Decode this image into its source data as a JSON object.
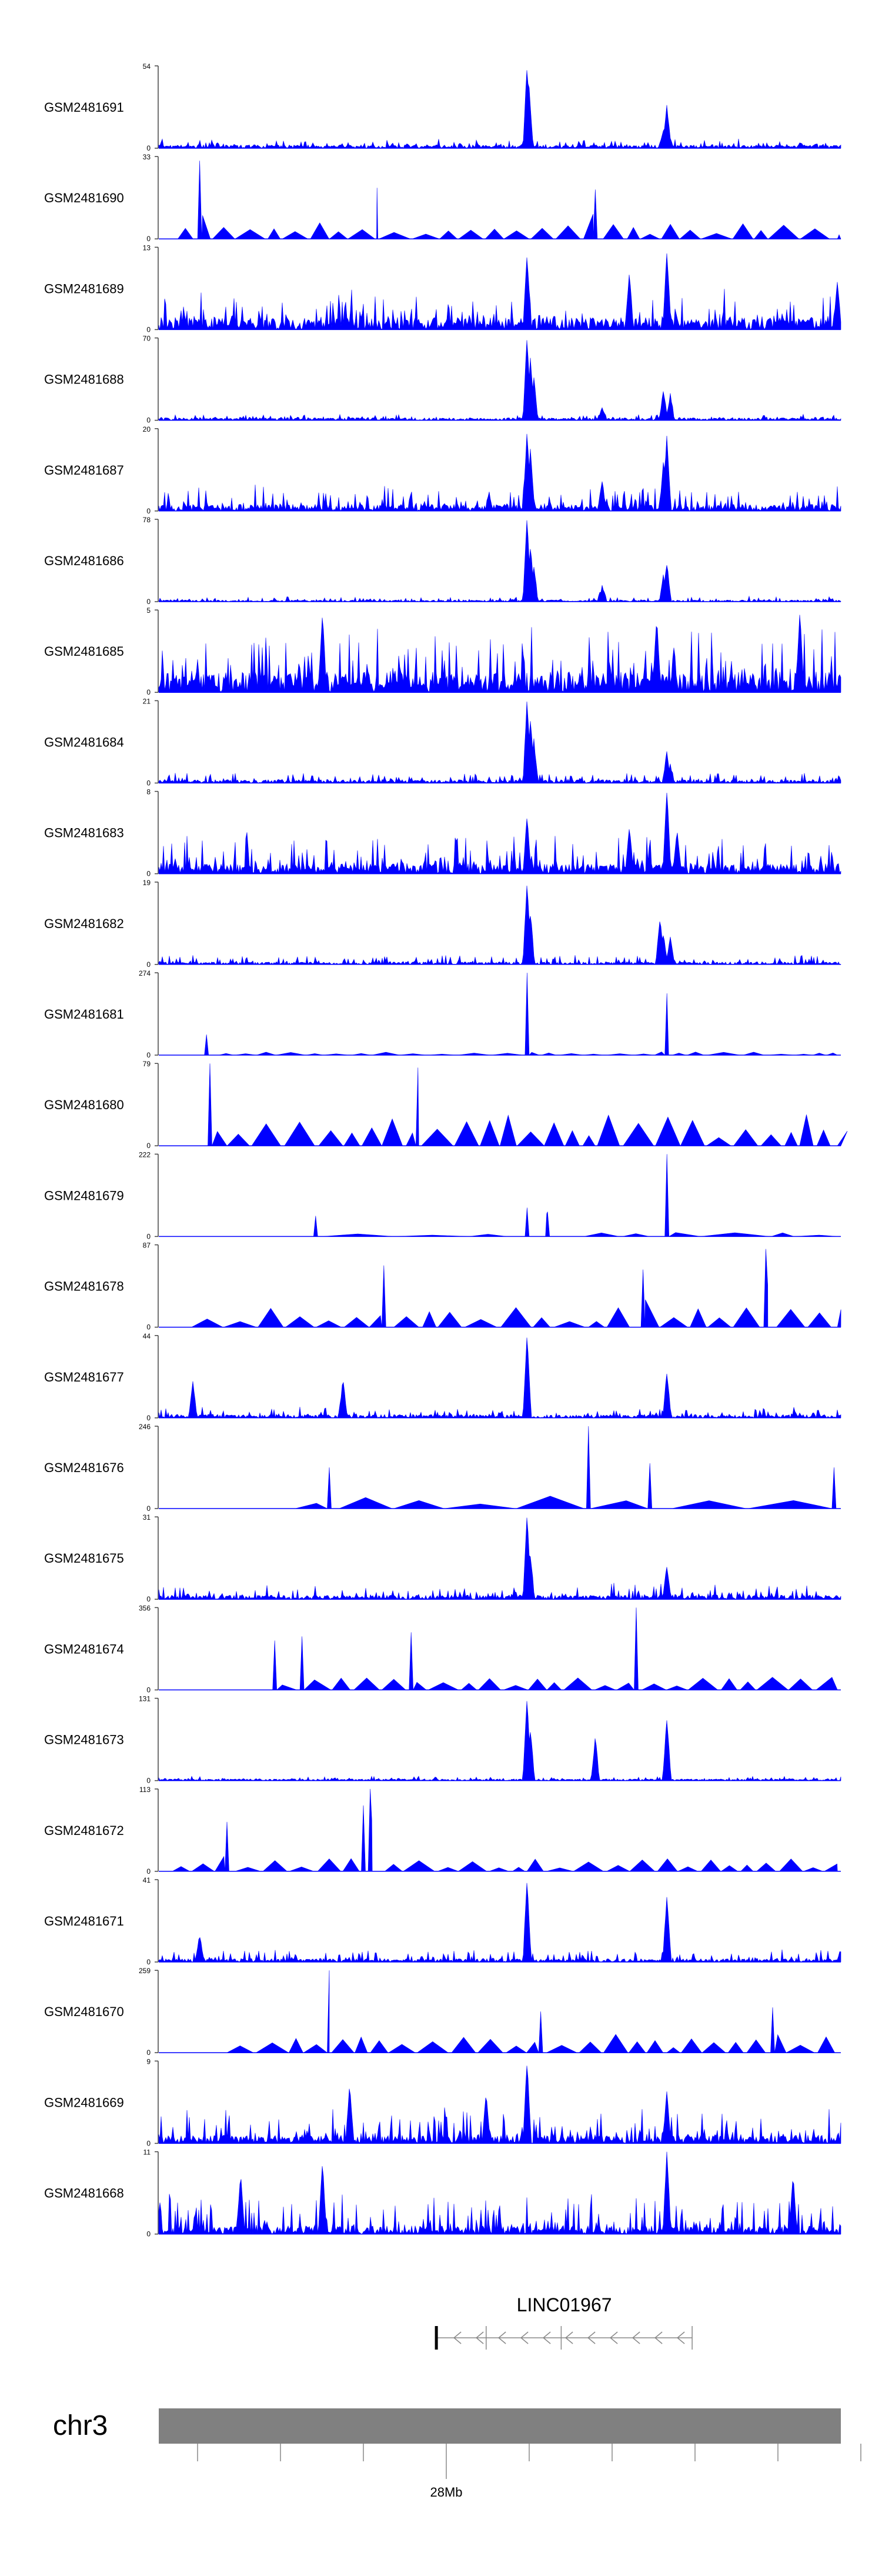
{
  "chart_data": {
    "type": "area",
    "title": "",
    "xlabel": "",
    "ylabel": "",
    "colors": {
      "signal": "#0000ff",
      "axis": "#444444",
      "ideogram": "#808080"
    },
    "tracks": [
      {
        "name": "GSM2481691",
        "ymax": 54,
        "style": "dense",
        "seed": 11,
        "density": 0.9,
        "base": 0.04,
        "noise": 0.08,
        "peaks": [
          [
            0.54,
            1.0
          ],
          [
            0.543,
            0.7
          ],
          [
            0.745,
            0.5
          ],
          [
            0.74,
            0.2
          ]
        ]
      },
      {
        "name": "GSM2481690",
        "ymax": 33,
        "style": "sparse",
        "seed": 12,
        "density": 0.93,
        "base": 0.0,
        "noise": 0.25,
        "peaks": [
          [
            0.06,
            0.95
          ],
          [
            0.32,
            0.62
          ],
          [
            0.64,
            0.6
          ]
        ]
      },
      {
        "name": "GSM2481689",
        "ymax": 13,
        "style": "dense",
        "seed": 13,
        "density": 0.98,
        "base": 0.15,
        "noise": 0.35,
        "peaks": [
          [
            0.54,
            0.9
          ],
          [
            0.745,
            0.95
          ],
          [
            0.69,
            0.7
          ],
          [
            0.995,
            0.55
          ]
        ]
      },
      {
        "name": "GSM2481688",
        "ymax": 70,
        "style": "dense",
        "seed": 14,
        "density": 0.9,
        "base": 0.03,
        "noise": 0.05,
        "peaks": [
          [
            0.54,
            1.0
          ],
          [
            0.545,
            0.75
          ],
          [
            0.55,
            0.5
          ],
          [
            0.74,
            0.35
          ],
          [
            0.75,
            0.3
          ],
          [
            0.65,
            0.15
          ]
        ]
      },
      {
        "name": "GSM2481687",
        "ymax": 20,
        "style": "dense",
        "seed": 15,
        "density": 0.98,
        "base": 0.08,
        "noise": 0.25,
        "peaks": [
          [
            0.54,
            0.95
          ],
          [
            0.545,
            0.75
          ],
          [
            0.745,
            0.9
          ],
          [
            0.74,
            0.6
          ],
          [
            0.65,
            0.35
          ]
        ]
      },
      {
        "name": "GSM2481686",
        "ymax": 78,
        "style": "dense",
        "seed": 16,
        "density": 0.9,
        "base": 0.02,
        "noise": 0.05,
        "peaks": [
          [
            0.54,
            1.0
          ],
          [
            0.545,
            0.65
          ],
          [
            0.55,
            0.4
          ],
          [
            0.745,
            0.45
          ],
          [
            0.74,
            0.3
          ],
          [
            0.65,
            0.15
          ]
        ]
      },
      {
        "name": "GSM2481685",
        "ymax": 5,
        "style": "dense",
        "seed": 17,
        "density": 0.99,
        "base": 0.25,
        "noise": 0.6,
        "peaks": [
          [
            0.24,
            0.95
          ],
          [
            0.73,
            0.9
          ],
          [
            0.94,
            0.95
          ]
        ]
      },
      {
        "name": "GSM2481684",
        "ymax": 21,
        "style": "dense",
        "seed": 18,
        "density": 0.95,
        "base": 0.04,
        "noise": 0.1,
        "peaks": [
          [
            0.54,
            1.0
          ],
          [
            0.545,
            0.75
          ],
          [
            0.55,
            0.5
          ],
          [
            0.745,
            0.35
          ],
          [
            0.75,
            0.2
          ]
        ]
      },
      {
        "name": "GSM2481683",
        "ymax": 8,
        "style": "dense",
        "seed": 19,
        "density": 0.98,
        "base": 0.12,
        "noise": 0.4,
        "peaks": [
          [
            0.745,
            1.0
          ],
          [
            0.54,
            0.7
          ],
          [
            0.69,
            0.55
          ],
          [
            0.76,
            0.5
          ]
        ]
      },
      {
        "name": "GSM2481682",
        "ymax": 19,
        "style": "dense",
        "seed": 20,
        "density": 0.92,
        "base": 0.03,
        "noise": 0.1,
        "peaks": [
          [
            0.54,
            1.0
          ],
          [
            0.545,
            0.6
          ],
          [
            0.735,
            0.55
          ],
          [
            0.74,
            0.35
          ],
          [
            0.75,
            0.3
          ]
        ]
      },
      {
        "name": "GSM2481681",
        "ymax": 274,
        "style": "sparse",
        "seed": 21,
        "density": 0.78,
        "base": 0.0,
        "noise": 0.05,
        "peaks": [
          [
            0.54,
            1.0
          ],
          [
            0.745,
            0.75
          ],
          [
            0.07,
            0.25
          ]
        ]
      },
      {
        "name": "GSM2481680",
        "ymax": 79,
        "style": "sparse",
        "seed": 22,
        "density": 0.82,
        "base": 0.0,
        "noise": 0.5,
        "peaks": [
          [
            0.075,
            1.0
          ],
          [
            0.38,
            0.95
          ]
        ]
      },
      {
        "name": "GSM2481679",
        "ymax": 222,
        "style": "sparse",
        "seed": 23,
        "density": 0.4,
        "base": 0.0,
        "noise": 0.08,
        "peaks": [
          [
            0.745,
            1.0
          ],
          [
            0.54,
            0.35
          ],
          [
            0.57,
            0.3
          ],
          [
            0.23,
            0.25
          ]
        ]
      },
      {
        "name": "GSM2481678",
        "ymax": 87,
        "style": "sparse",
        "seed": 24,
        "density": 0.88,
        "base": 0.0,
        "noise": 0.3,
        "peaks": [
          [
            0.89,
            0.95
          ],
          [
            0.33,
            0.75
          ],
          [
            0.71,
            0.7
          ]
        ]
      },
      {
        "name": "GSM2481677",
        "ymax": 44,
        "style": "dense",
        "seed": 25,
        "density": 0.95,
        "base": 0.04,
        "noise": 0.1,
        "peaks": [
          [
            0.54,
            1.0
          ],
          [
            0.745,
            0.55
          ],
          [
            0.27,
            0.45
          ],
          [
            0.05,
            0.4
          ]
        ]
      },
      {
        "name": "GSM2481676",
        "ymax": 246,
        "style": "sparse",
        "seed": 26,
        "density": 0.5,
        "base": 0.0,
        "noise": 0.2,
        "peaks": [
          [
            0.63,
            1.0
          ],
          [
            0.72,
            0.55
          ],
          [
            0.99,
            0.5
          ],
          [
            0.25,
            0.5
          ]
        ]
      },
      {
        "name": "GSM2481675",
        "ymax": 31,
        "style": "dense",
        "seed": 27,
        "density": 0.96,
        "base": 0.05,
        "noise": 0.15,
        "peaks": [
          [
            0.54,
            1.0
          ],
          [
            0.545,
            0.5
          ],
          [
            0.745,
            0.4
          ]
        ]
      },
      {
        "name": "GSM2481674",
        "ymax": 356,
        "style": "sparse",
        "seed": 28,
        "density": 0.6,
        "base": 0.0,
        "noise": 0.2,
        "peaks": [
          [
            0.7,
            1.0
          ],
          [
            0.37,
            0.7
          ],
          [
            0.21,
            0.65
          ],
          [
            0.17,
            0.6
          ]
        ]
      },
      {
        "name": "GSM2481673",
        "ymax": 131,
        "style": "dense",
        "seed": 29,
        "density": 0.9,
        "base": 0.02,
        "noise": 0.04,
        "peaks": [
          [
            0.54,
            1.0
          ],
          [
            0.745,
            0.75
          ],
          [
            0.64,
            0.5
          ],
          [
            0.545,
            0.6
          ]
        ]
      },
      {
        "name": "GSM2481672",
        "ymax": 113,
        "style": "sparse",
        "seed": 30,
        "density": 0.95,
        "base": 0.0,
        "noise": 0.2,
        "peaks": [
          [
            0.31,
            1.0
          ],
          [
            0.3,
            0.8
          ],
          [
            0.1,
            0.6
          ]
        ]
      },
      {
        "name": "GSM2481671",
        "ymax": 41,
        "style": "dense",
        "seed": 31,
        "density": 0.95,
        "base": 0.04,
        "noise": 0.12,
        "peaks": [
          [
            0.54,
            1.0
          ],
          [
            0.745,
            0.8
          ],
          [
            0.06,
            0.3
          ]
        ]
      },
      {
        "name": "GSM2481670",
        "ymax": 259,
        "style": "sparse",
        "seed": 32,
        "density": 0.75,
        "base": 0.0,
        "noise": 0.3,
        "peaks": [
          [
            0.25,
            1.0
          ],
          [
            0.9,
            0.55
          ],
          [
            0.56,
            0.5
          ]
        ]
      },
      {
        "name": "GSM2481669",
        "ymax": 9,
        "style": "dense",
        "seed": 33,
        "density": 0.97,
        "base": 0.1,
        "noise": 0.35,
        "peaks": [
          [
            0.54,
            1.0
          ],
          [
            0.28,
            0.7
          ],
          [
            0.48,
            0.6
          ],
          [
            0.745,
            0.6
          ]
        ]
      },
      {
        "name": "GSM2481668",
        "ymax": 11,
        "style": "dense",
        "seed": 34,
        "density": 0.98,
        "base": 0.1,
        "noise": 0.4,
        "peaks": [
          [
            0.745,
            1.0
          ],
          [
            0.24,
            0.85
          ],
          [
            0.12,
            0.7
          ],
          [
            0.93,
            0.7
          ]
        ]
      }
    ],
    "gene": {
      "name": "LINC01967",
      "strand": "-",
      "start_frac": 0.407,
      "end_frac": 0.782,
      "exons": [
        0.407,
        0.48,
        0.59,
        0.782
      ]
    },
    "ideogram": {
      "chromosome": "chr3",
      "tick_count": 9,
      "label_tick_index": 3,
      "label": "28Mb"
    }
  }
}
